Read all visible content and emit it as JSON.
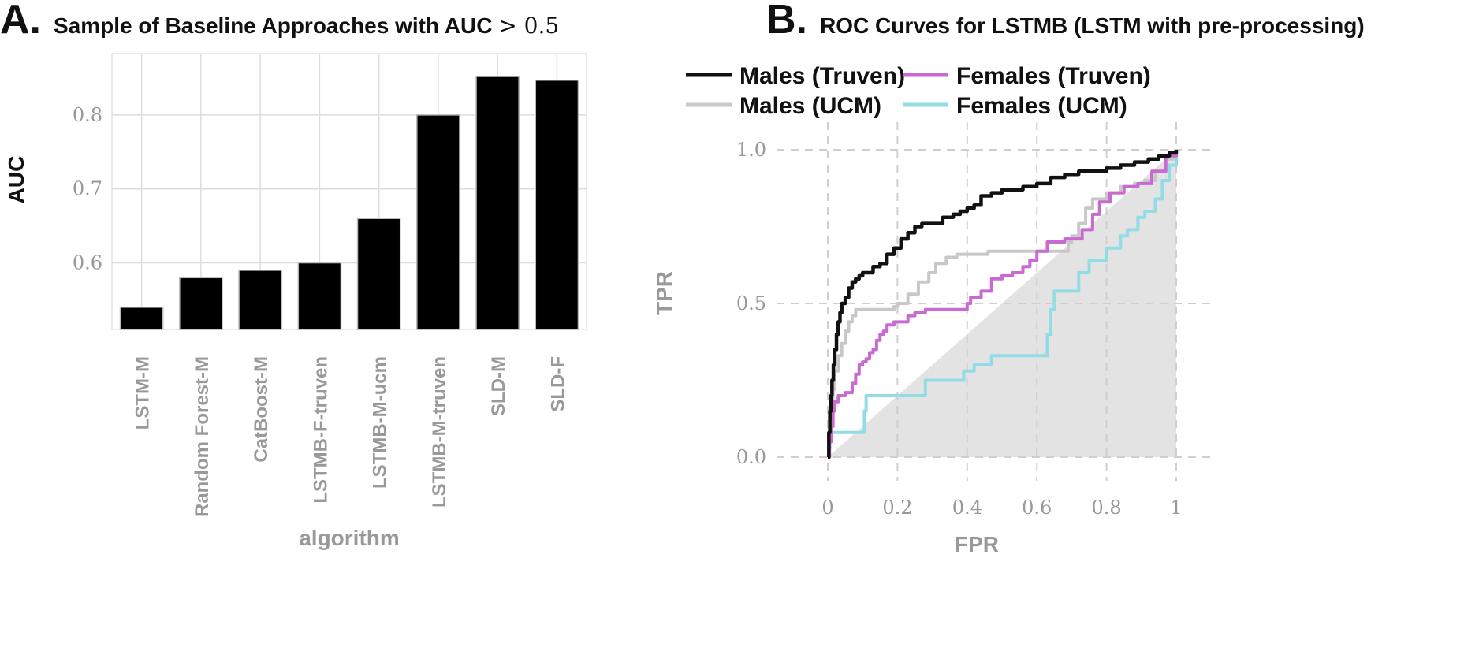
{
  "panel_a": {
    "letter": "A.",
    "title_text": "Sample of Baseline Approaches with AUC ",
    "title_math": "> 0.5"
  },
  "panel_b": {
    "letter": "B.",
    "title": "ROC Curves for LSTMB (LSTM with pre-processing)"
  },
  "chart_data": [
    {
      "type": "bar",
      "title": "Sample of Baseline Approaches with AUC > 0.5",
      "xlabel": "algorithm",
      "ylabel": "AUC",
      "categories": [
        "LSTM-M",
        "Random Forest-M",
        "CatBoost-M",
        "LSTMB-F-truven",
        "LSTMB-M-ucm",
        "LSTMB-M-truven",
        "SLD-M",
        "SLD-F"
      ],
      "values": [
        0.54,
        0.58,
        0.59,
        0.6,
        0.66,
        0.8,
        0.852,
        0.847
      ],
      "ylim": [
        0.51,
        0.883
      ],
      "yticks": [
        0.6,
        0.7,
        0.8
      ],
      "ytick_labels": [
        "0.6",
        "0.7",
        "0.8"
      ],
      "grid": true,
      "colors": {
        "bar": "#000000",
        "grid": "#dddddd",
        "panel_border": "#e3e3e3"
      }
    },
    {
      "type": "line",
      "title": "ROC Curves for LSTMB (LSTM with pre-processing)",
      "xlabel": "FPR",
      "ylabel": "TPR",
      "xlim": [
        -0.05,
        1.05
      ],
      "ylim": [
        -0.1,
        1.05
      ],
      "xticks": [
        0,
        0.2,
        0.4,
        0.6,
        0.8,
        1
      ],
      "xtick_labels": [
        "0",
        "0.2",
        "0.4",
        "0.6",
        "0.8",
        "1"
      ],
      "yticks": [
        0,
        0.5,
        1
      ],
      "ytick_labels": [
        "0.0",
        "0.5",
        "1.0"
      ],
      "grid": true,
      "legend_position": "top",
      "chance_region": {
        "description": "shaded region below diagonal",
        "color": "#e3e3e3"
      },
      "series": [
        {
          "name": "Males (Truven)",
          "color": "#111111",
          "x": [
            0,
            0.003,
            0.006,
            0.009,
            0.012,
            0.016,
            0.02,
            0.025,
            0.03,
            0.035,
            0.04,
            0.05,
            0.06,
            0.07,
            0.08,
            0.09,
            0.1,
            0.11,
            0.13,
            0.15,
            0.17,
            0.19,
            0.21,
            0.23,
            0.25,
            0.27,
            0.3,
            0.33,
            0.36,
            0.38,
            0.4,
            0.42,
            0.44,
            0.47,
            0.5,
            0.53,
            0.56,
            0.6,
            0.64,
            0.68,
            0.72,
            0.76,
            0.8,
            0.84,
            0.88,
            0.92,
            0.95,
            0.98,
            1.0
          ],
          "y": [
            0,
            0.08,
            0.15,
            0.2,
            0.25,
            0.3,
            0.35,
            0.4,
            0.44,
            0.47,
            0.5,
            0.52,
            0.55,
            0.57,
            0.58,
            0.59,
            0.6,
            0.6,
            0.62,
            0.63,
            0.66,
            0.68,
            0.71,
            0.73,
            0.75,
            0.76,
            0.76,
            0.78,
            0.79,
            0.8,
            0.81,
            0.82,
            0.85,
            0.86,
            0.87,
            0.87,
            0.88,
            0.89,
            0.91,
            0.92,
            0.93,
            0.93,
            0.94,
            0.95,
            0.96,
            0.97,
            0.98,
            0.99,
            1.0
          ]
        },
        {
          "name": "Males (UCM)",
          "color": "#c8c8c8",
          "x": [
            0,
            0.003,
            0.006,
            0.01,
            0.015,
            0.02,
            0.03,
            0.04,
            0.05,
            0.06,
            0.07,
            0.08,
            0.09,
            0.1,
            0.13,
            0.16,
            0.19,
            0.2,
            0.23,
            0.26,
            0.29,
            0.31,
            0.34,
            0.37,
            0.41,
            0.46,
            0.5,
            0.56,
            0.62,
            0.66,
            0.69,
            0.7,
            0.72,
            0.74,
            0.76,
            0.8,
            0.84,
            0.88,
            0.91,
            0.94,
            0.97,
            1.0
          ],
          "y": [
            0,
            0.05,
            0.12,
            0.18,
            0.22,
            0.28,
            0.33,
            0.37,
            0.41,
            0.44,
            0.46,
            0.48,
            0.48,
            0.48,
            0.48,
            0.48,
            0.49,
            0.5,
            0.53,
            0.57,
            0.6,
            0.63,
            0.65,
            0.66,
            0.66,
            0.67,
            0.67,
            0.67,
            0.67,
            0.67,
            0.7,
            0.72,
            0.76,
            0.81,
            0.84,
            0.86,
            0.88,
            0.89,
            0.9,
            0.93,
            0.97,
            1.0
          ]
        },
        {
          "name": "Females (Truven)",
          "color": "#c86ad0",
          "x": [
            0,
            0.005,
            0.01,
            0.015,
            0.02,
            0.03,
            0.05,
            0.07,
            0.08,
            0.09,
            0.1,
            0.11,
            0.12,
            0.13,
            0.14,
            0.15,
            0.16,
            0.17,
            0.19,
            0.21,
            0.23,
            0.25,
            0.28,
            0.32,
            0.36,
            0.4,
            0.41,
            0.44,
            0.47,
            0.5,
            0.53,
            0.56,
            0.58,
            0.6,
            0.63,
            0.68,
            0.71,
            0.73,
            0.76,
            0.78,
            0.81,
            0.85,
            0.89,
            0.93,
            0.97,
            1.0
          ],
          "y": [
            0,
            0.05,
            0.1,
            0.15,
            0.18,
            0.2,
            0.21,
            0.24,
            0.27,
            0.3,
            0.31,
            0.32,
            0.34,
            0.35,
            0.38,
            0.4,
            0.41,
            0.43,
            0.44,
            0.44,
            0.46,
            0.47,
            0.48,
            0.48,
            0.48,
            0.5,
            0.52,
            0.54,
            0.58,
            0.59,
            0.6,
            0.62,
            0.64,
            0.67,
            0.7,
            0.71,
            0.71,
            0.74,
            0.79,
            0.83,
            0.86,
            0.88,
            0.89,
            0.93,
            0.98,
            1.0
          ]
        },
        {
          "name": "Females (UCM)",
          "color": "#92dce6",
          "x": [
            0,
            0.003,
            0.006,
            0.01,
            0.02,
            0.05,
            0.1,
            0.105,
            0.11,
            0.15,
            0.2,
            0.25,
            0.28,
            0.35,
            0.39,
            0.42,
            0.47,
            0.55,
            0.6,
            0.63,
            0.64,
            0.65,
            0.67,
            0.72,
            0.75,
            0.78,
            0.8,
            0.84,
            0.86,
            0.89,
            0.91,
            0.94,
            0.96,
            0.98,
            1.0
          ],
          "y": [
            0,
            0.03,
            0.06,
            0.08,
            0.08,
            0.08,
            0.08,
            0.15,
            0.2,
            0.2,
            0.2,
            0.2,
            0.25,
            0.25,
            0.28,
            0.3,
            0.33,
            0.33,
            0.33,
            0.4,
            0.48,
            0.54,
            0.54,
            0.6,
            0.64,
            0.64,
            0.68,
            0.72,
            0.74,
            0.78,
            0.8,
            0.84,
            0.9,
            0.95,
            1.0
          ]
        }
      ]
    }
  ]
}
